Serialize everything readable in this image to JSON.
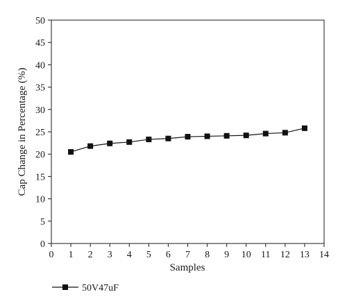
{
  "chart_data": {
    "type": "line",
    "title": "",
    "xlabel": "Samples",
    "ylabel": "Cap Change in Percentage (%)",
    "xlim": [
      0,
      14
    ],
    "ylim": [
      0,
      50
    ],
    "x_ticks": [
      "0",
      "1",
      "2",
      "3",
      "4",
      "5",
      "6",
      "7",
      "8",
      "9",
      "10",
      "11",
      "12",
      "13",
      "14"
    ],
    "y_ticks": [
      "0",
      "5",
      "10",
      "15",
      "20",
      "25",
      "30",
      "35",
      "40",
      "45",
      "50"
    ],
    "grid": false,
    "legend_position": "bottom-left",
    "series": [
      {
        "name": "50V47uF",
        "marker": "square",
        "color": "#111111",
        "x": [
          1,
          2,
          3,
          4,
          5,
          6,
          7,
          8,
          9,
          10,
          11,
          12,
          13
        ],
        "y": [
          20.5,
          21.8,
          22.4,
          22.7,
          23.3,
          23.5,
          23.9,
          24.0,
          24.1,
          24.2,
          24.6,
          24.8,
          25.8
        ]
      }
    ]
  }
}
